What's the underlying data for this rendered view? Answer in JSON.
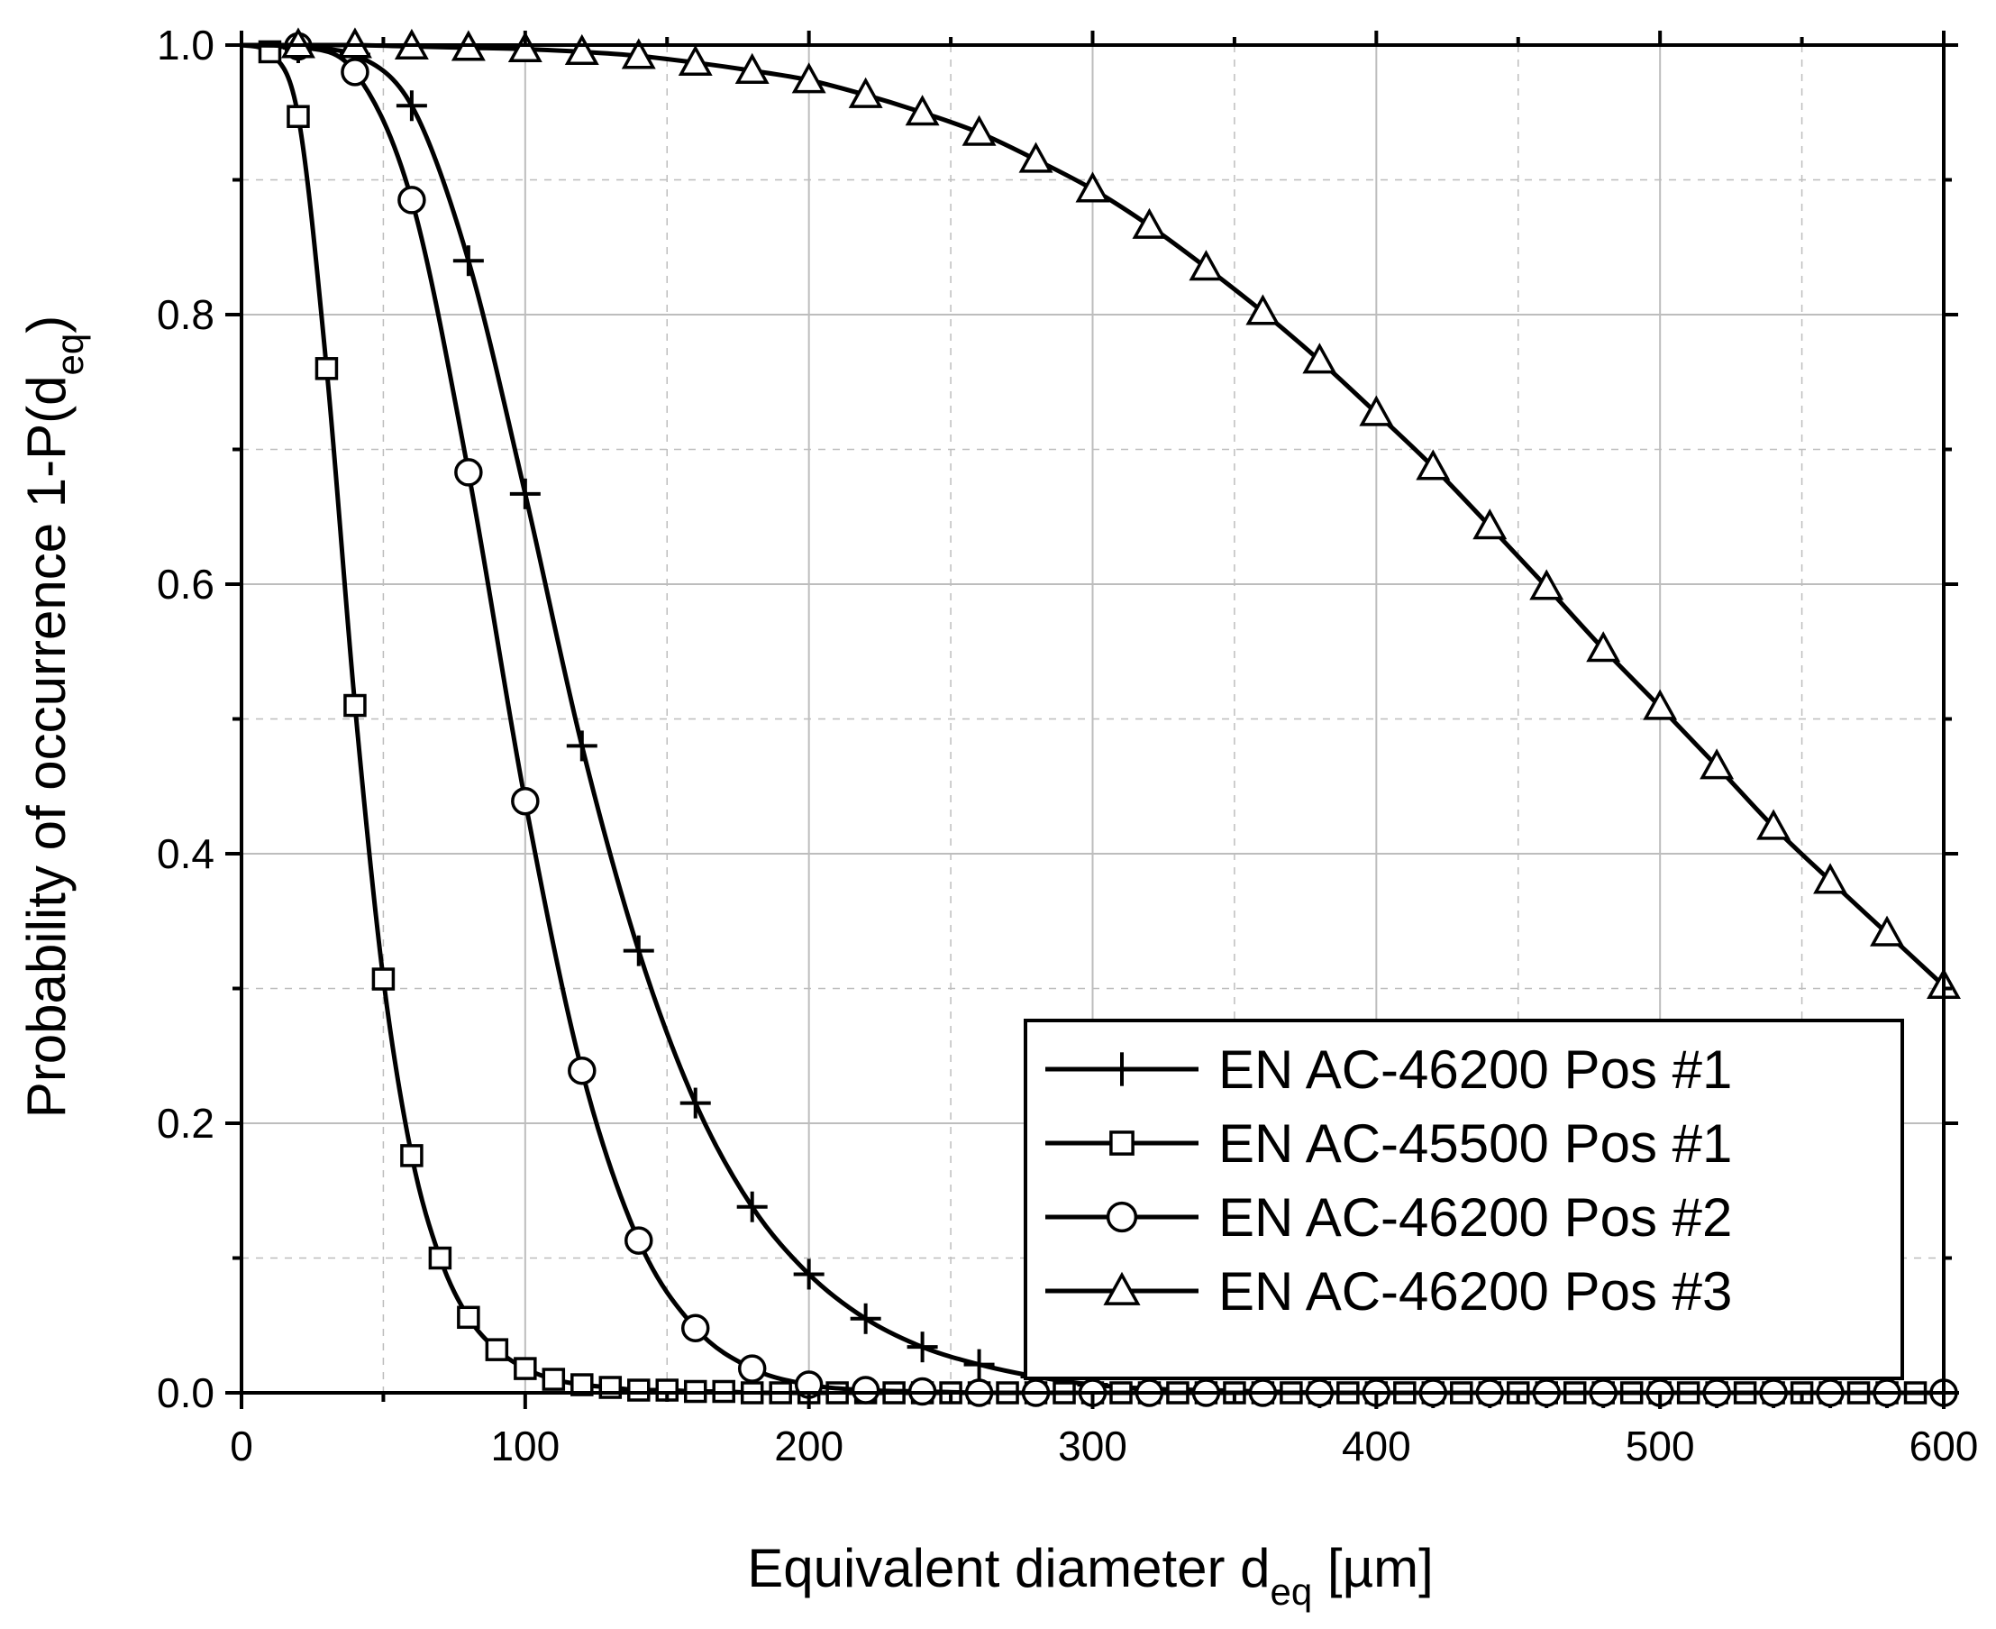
{
  "chart_data": {
    "type": "line",
    "xlabel_main": "Equivalent diameter d",
    "xlabel_sub": "eq",
    "xlabel_unit": " [µm]",
    "ylabel_main": "Probability of occurrence 1-P(d",
    "ylabel_sub": "eq",
    "ylabel_close": ")",
    "xlim": [
      0,
      600
    ],
    "ylim": [
      0,
      1.0
    ],
    "x_ticks": [
      0,
      100,
      200,
      300,
      400,
      500,
      600
    ],
    "x_tick_labels": [
      "0",
      "100",
      "200",
      "300",
      "400",
      "500",
      "600"
    ],
    "y_ticks": [
      0,
      0.2,
      0.4,
      0.6,
      0.8,
      1.0
    ],
    "y_tick_labels": [
      "0.0",
      "0.2",
      "0.4",
      "0.6",
      "0.8",
      "1.0"
    ],
    "grid": true,
    "legend_position": "bottom-right",
    "series": [
      {
        "name": "EN AC-46200 Pos #1",
        "marker": "plus",
        "x": [
          0,
          20,
          40,
          60,
          80,
          100,
          120,
          140,
          160,
          180,
          200,
          220,
          240,
          260,
          280,
          300,
          320,
          340,
          360,
          380,
          400,
          420,
          440,
          460,
          480,
          500,
          520,
          540,
          560,
          580,
          600
        ],
        "y": [
          1.0,
          0.998,
          0.993,
          0.955,
          0.84,
          0.667,
          0.48,
          0.328,
          0.215,
          0.138,
          0.088,
          0.055,
          0.034,
          0.021,
          0.012,
          0.006,
          0.003,
          0.002,
          0.001,
          0.0,
          0.0,
          0.0,
          0.0,
          0.0,
          0.0,
          0.0,
          0.0,
          0.0,
          0.0,
          0.0,
          0.0
        ]
      },
      {
        "name": "EN AC-45500 Pos #1",
        "marker": "square",
        "x": [
          0,
          10,
          20,
          30,
          40,
          50,
          60,
          70,
          80,
          90,
          100,
          110,
          120,
          130,
          140,
          150,
          160,
          170,
          180,
          190,
          200,
          210,
          220,
          230,
          240,
          250,
          260,
          270,
          280,
          290,
          300,
          310,
          320,
          330,
          340,
          350,
          360,
          370,
          380,
          390,
          400,
          410,
          420,
          430,
          440,
          450,
          460,
          470,
          480,
          490,
          500,
          510,
          520,
          530,
          540,
          550,
          560,
          570,
          580,
          590
        ],
        "y": [
          1.0,
          0.995,
          0.947,
          0.76,
          0.51,
          0.307,
          0.176,
          0.1,
          0.056,
          0.032,
          0.018,
          0.01,
          0.006,
          0.004,
          0.002,
          0.002,
          0.001,
          0.001,
          0.0,
          0.0,
          0.0,
          0.0,
          0.0,
          0.0,
          0.0,
          0.0,
          0.0,
          0.0,
          0.0,
          0.0,
          0.0,
          0.0,
          0.0,
          0.0,
          0.0,
          0.0,
          0.0,
          0.0,
          0.0,
          0.0,
          0.0,
          0.0,
          0.0,
          0.0,
          0.0,
          0.0,
          0.0,
          0.0,
          0.0,
          0.0,
          0.0,
          0.0,
          0.0,
          0.0,
          0.0,
          0.0,
          0.0,
          0.0,
          0.0,
          0.0
        ]
      },
      {
        "name": "EN AC-46200 Pos #2",
        "marker": "circle",
        "x": [
          0,
          20,
          40,
          60,
          80,
          100,
          120,
          140,
          160,
          180,
          200,
          220,
          240,
          260,
          280,
          300,
          320,
          340,
          360,
          380,
          400,
          420,
          440,
          460,
          480,
          500,
          520,
          540,
          560,
          580,
          600
        ],
        "y": [
          1.0,
          0.999,
          0.98,
          0.885,
          0.683,
          0.439,
          0.239,
          0.113,
          0.048,
          0.018,
          0.006,
          0.002,
          0.001,
          0.0,
          0.0,
          0.0,
          0.0,
          0.0,
          0.0,
          0.0,
          0.0,
          0.0,
          0.0,
          0.0,
          0.0,
          0.0,
          0.0,
          0.0,
          0.0,
          0.0,
          0.0
        ]
      },
      {
        "name": "EN AC-46200 Pos #3",
        "marker": "triangle",
        "x": [
          0,
          20,
          40,
          60,
          80,
          100,
          120,
          140,
          160,
          180,
          200,
          220,
          240,
          260,
          280,
          300,
          320,
          340,
          360,
          380,
          400,
          420,
          440,
          460,
          480,
          500,
          520,
          540,
          560,
          580,
          600
        ],
        "y": [
          1.0,
          1.0,
          1.0,
          0.999,
          0.998,
          0.997,
          0.995,
          0.992,
          0.987,
          0.981,
          0.974,
          0.963,
          0.95,
          0.935,
          0.915,
          0.893,
          0.866,
          0.835,
          0.802,
          0.766,
          0.727,
          0.687,
          0.643,
          0.598,
          0.552,
          0.509,
          0.465,
          0.42,
          0.38,
          0.341,
          0.302
        ]
      }
    ]
  },
  "colors": {
    "line": "#000000",
    "grid": "#bdbdbd",
    "background": "#ffffff"
  }
}
